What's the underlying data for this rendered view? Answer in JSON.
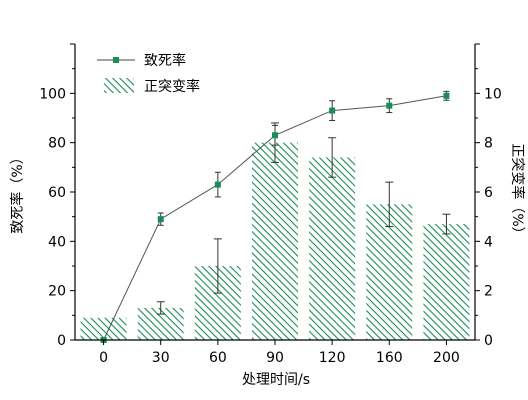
{
  "chart_data": {
    "type": "bar+line",
    "categories": [
      "0",
      "30",
      "60",
      "90",
      "120",
      "160",
      "200"
    ],
    "xlabel": "处理时间/s",
    "ylabel_left": "致死率（%）",
    "ylabel_right": "正突变率（%）",
    "ylim_left": [
      0,
      120
    ],
    "ylim_right": [
      0,
      12
    ],
    "yticks_left": [
      0,
      20,
      40,
      60,
      80,
      100
    ],
    "yticks_right": [
      0,
      2,
      4,
      6,
      8,
      10
    ],
    "legend_position": "top-left",
    "grid": false,
    "series": [
      {
        "name": "致死率",
        "kind": "line",
        "axis": "left",
        "values": [
          0,
          49,
          63,
          83,
          93,
          95,
          99
        ],
        "error": [
          0.8,
          2.5,
          5.0,
          4.0,
          4.0,
          2.8,
          1.8
        ]
      },
      {
        "name": "正突变率",
        "kind": "bar",
        "axis": "right",
        "values": [
          0.9,
          1.3,
          3.0,
          8.0,
          7.4,
          5.5,
          4.7
        ],
        "error": [
          0,
          0.25,
          1.1,
          0.8,
          0.8,
          0.9,
          0.4
        ]
      }
    ],
    "colors": {
      "accent": "#1a8c57"
    }
  }
}
